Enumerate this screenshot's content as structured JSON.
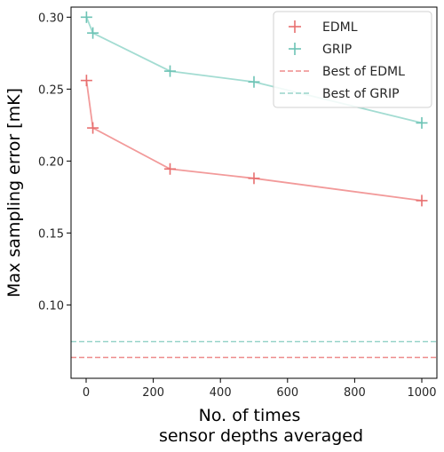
{
  "chart_data": {
    "type": "line",
    "xlabel_lines": [
      "No. of times",
      "sensor depths averaged"
    ],
    "ylabel": "Max sampling error [mK]",
    "xlim": [
      -45,
      1045
    ],
    "ylim": [
      0.049,
      0.307
    ],
    "xticks": [
      0,
      200,
      400,
      600,
      800,
      1000
    ],
    "xtick_labels": [
      "0",
      "200",
      "400",
      "600",
      "800",
      "1000"
    ],
    "yticks": [
      0.1,
      0.15,
      0.2,
      0.25,
      0.3
    ],
    "ytick_labels": [
      "0.10",
      "0.15",
      "0.20",
      "0.25",
      "0.30"
    ],
    "grid": false,
    "legend_position": "top-right",
    "series": [
      {
        "name": "EDML",
        "color": "#e86f6f",
        "line_color": "#f29a9a",
        "marker": "plus",
        "x": [
          1,
          20,
          250,
          500,
          1000
        ],
        "y": [
          0.256,
          0.223,
          0.1945,
          0.188,
          0.1725
        ]
      },
      {
        "name": "GRIP",
        "color": "#6cc3b5",
        "line_color": "#a3dcd2",
        "marker": "plus",
        "x": [
          1,
          20,
          250,
          500,
          1000
        ],
        "y": [
          0.3,
          0.289,
          0.2625,
          0.255,
          0.2265
        ]
      }
    ],
    "reference_lines": [
      {
        "name": "Best of EDML",
        "y": 0.0635,
        "color": "#ee8c8c",
        "style": "dashed"
      },
      {
        "name": "Best of GRIP",
        "y": 0.0745,
        "color": "#98d4ca",
        "style": "dashed"
      }
    ]
  }
}
